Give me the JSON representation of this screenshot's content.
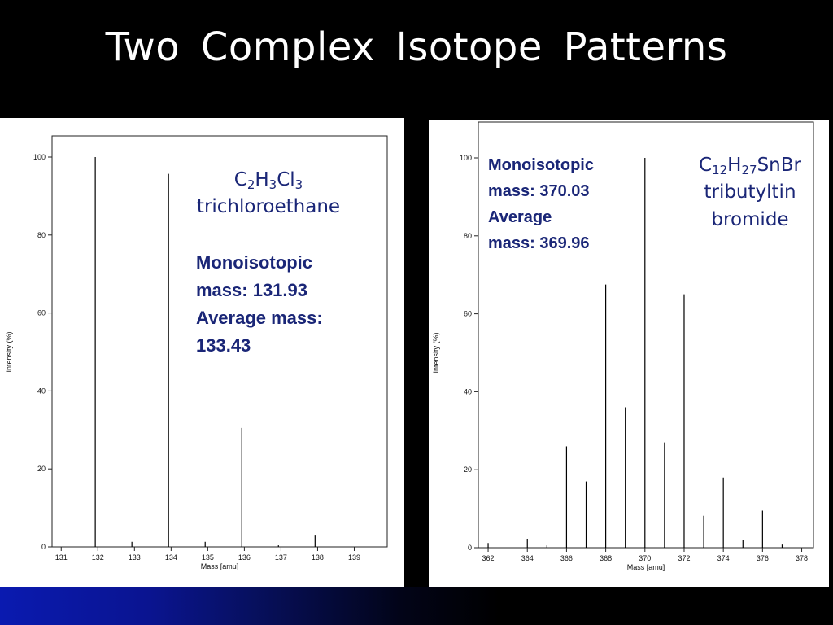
{
  "slide": {
    "title": "Two Complex Isotope Patterns"
  },
  "left": {
    "formula": {
      "C": "C",
      "n1": "2",
      "H": "H",
      "n2": "3",
      "Cl": "Cl",
      "n3": "3"
    },
    "name": "trichloroethane",
    "mono_label": "Monoisotopic",
    "mono_value": "mass:  131.93",
    "avg_label": "Average mass:",
    "avg_value": "133.43"
  },
  "right": {
    "formula": {
      "C": "C",
      "n1": "12",
      "H": "H",
      "n2": "27",
      "rest": "SnBr"
    },
    "name_line1": "tributyltin",
    "name_line2": "bromide",
    "mono_label": "Monoisotopic",
    "mono_value": "mass:  370.03",
    "avg_label": "Average",
    "avg_value": "mass:  369.96"
  },
  "chart_data": [
    {
      "type": "bar",
      "xlabel": "Mass [amu]",
      "ylabel": "Intensity (%)",
      "xlim": [
        130.75,
        139.9
      ],
      "ylim": [
        0,
        100
      ],
      "xticks": [
        131,
        132,
        133,
        134,
        135,
        136,
        137,
        138,
        139
      ],
      "yticks": [
        0,
        20,
        40,
        60,
        80,
        100
      ],
      "grid": false,
      "x": [
        131.93,
        132.93,
        133.93,
        134.93,
        135.93,
        136.93,
        137.93
      ],
      "values": [
        100,
        1.3,
        95.7,
        1.3,
        30.5,
        0.4,
        2.9
      ]
    },
    {
      "type": "bar",
      "xlabel": "Mass [amu]",
      "ylabel": "Intensity (%)",
      "xlim": [
        361.5,
        378.6
      ],
      "ylim": [
        0,
        100
      ],
      "xticks": [
        362,
        364,
        366,
        368,
        370,
        372,
        374,
        376,
        378
      ],
      "yticks": [
        0,
        20,
        40,
        60,
        80,
        100
      ],
      "grid": false,
      "x": [
        362,
        364,
        365,
        366,
        367,
        368,
        369,
        370,
        371,
        372,
        373,
        374,
        375,
        376,
        377
      ],
      "values": [
        1.2,
        2.3,
        0.6,
        26,
        17,
        67.5,
        36,
        100,
        27,
        65,
        8.2,
        18,
        2,
        9.5,
        0.8
      ]
    }
  ]
}
